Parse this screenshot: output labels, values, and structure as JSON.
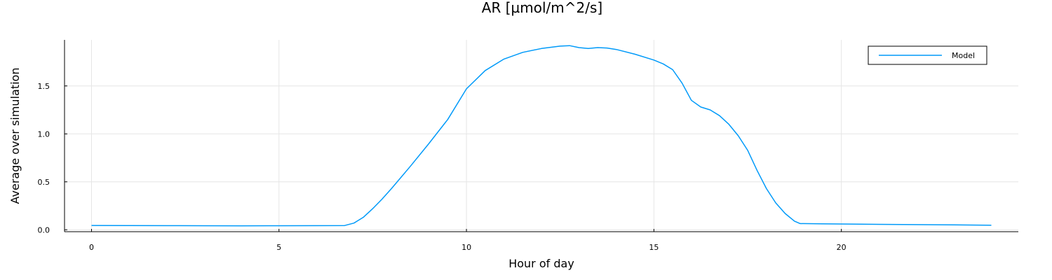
{
  "chart_data": {
    "type": "line",
    "title": "AR [µmol/m^2/s]",
    "xlabel": "Hour of day",
    "ylabel": "Average over simulation",
    "xlim": [
      -0.72,
      24.72
    ],
    "ylim": [
      -0.02,
      1.98
    ],
    "xticks": [
      0,
      5,
      10,
      15,
      20
    ],
    "xtick_labels": [
      "0",
      "5",
      "10",
      "15",
      "20"
    ],
    "yticks": [
      0.0,
      0.5,
      1.0,
      1.5
    ],
    "ytick_labels": [
      "0.0",
      "0.5",
      "1.0",
      "1.5"
    ],
    "grid": true,
    "legend": {
      "position": "top-right",
      "entries": [
        "Model"
      ]
    },
    "series": [
      {
        "name": "Model",
        "color": "#009af9",
        "x": [
          0,
          1,
          2,
          3,
          4,
          5,
          6,
          6.75,
          7.0,
          7.25,
          7.5,
          7.75,
          8.0,
          8.5,
          9.0,
          9.5,
          10.0,
          10.5,
          11.0,
          11.5,
          12.0,
          12.5,
          12.75,
          13.0,
          13.25,
          13.5,
          13.75,
          14.0,
          14.5,
          15.0,
          15.25,
          15.5,
          15.75,
          16.0,
          16.25,
          16.5,
          16.75,
          17.0,
          17.25,
          17.5,
          17.75,
          18.0,
          18.25,
          18.5,
          18.75,
          18.9,
          19.5,
          20.0,
          21.0,
          22.0,
          23.0,
          24.0
        ],
        "y": [
          0.045,
          0.044,
          0.043,
          0.042,
          0.041,
          0.042,
          0.043,
          0.044,
          0.07,
          0.13,
          0.22,
          0.32,
          0.43,
          0.66,
          0.9,
          1.15,
          1.47,
          1.66,
          1.78,
          1.85,
          1.89,
          1.915,
          1.92,
          1.9,
          1.89,
          1.9,
          1.895,
          1.88,
          1.83,
          1.77,
          1.73,
          1.67,
          1.53,
          1.35,
          1.28,
          1.25,
          1.19,
          1.1,
          0.98,
          0.83,
          0.62,
          0.43,
          0.28,
          0.17,
          0.09,
          0.065,
          0.062,
          0.06,
          0.057,
          0.054,
          0.051,
          0.048
        ]
      }
    ]
  }
}
